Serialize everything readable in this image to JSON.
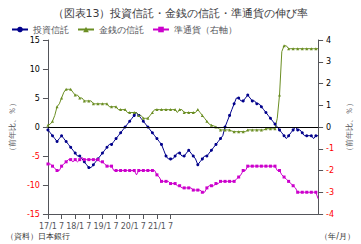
{
  "chart_data": {
    "type": "line",
    "title": "（図表13）投資信託・金銭の信託・準通貨の伸び率",
    "ylabel": "（前年比、％）",
    "y2label": "（前年比、％）",
    "annotations": [
      "（資料）日本銀行",
      "（年/月）"
    ],
    "legend": "upper left",
    "grid": false,
    "ylim": [
      -15,
      15
    ],
    "yticks": [
      -15,
      -10,
      -5,
      0,
      5,
      10,
      15
    ],
    "y2lim": [
      -4,
      4
    ],
    "y2ticks": [
      -4,
      -3,
      -2,
      -1,
      0,
      1,
      2,
      3,
      4
    ],
    "categories": [
      "17/1",
      null,
      null,
      null,
      null,
      null,
      "7",
      null,
      null,
      null,
      null,
      null,
      "18/1",
      null,
      null,
      null,
      null,
      null,
      "7",
      null,
      null,
      null,
      null,
      null,
      "19/1",
      null,
      null,
      null,
      null,
      null,
      "7",
      null,
      null,
      null,
      null,
      null,
      "20/1",
      null,
      null,
      null,
      null,
      null,
      "7",
      null,
      null,
      null,
      null,
      null,
      "21/1",
      null,
      null,
      null,
      null,
      null,
      "7",
      null,
      null,
      null,
      null,
      null,
      null,
      null,
      null,
      null,
      null,
      null,
      null,
      null,
      null,
      null,
      null,
      null,
      null,
      null,
      null,
      null,
      null,
      null,
      null,
      null,
      null,
      null,
      null,
      null,
      null,
      null,
      null,
      null,
      null,
      null,
      null,
      null,
      null,
      null,
      null,
      null,
      null,
      null,
      null,
      null,
      null,
      null,
      null,
      null,
      null,
      null,
      null,
      null,
      null,
      null,
      null,
      null,
      null,
      null,
      null,
      null,
      null,
      null,
      null,
      null
    ],
    "series": [
      {
        "name": "投資信託",
        "color": "#00008B",
        "marker": "circle",
        "values": [
          -0.5,
          -1.0,
          -1.5,
          -2.0,
          -2.5,
          -2.0,
          -1.5,
          -2.0,
          -2.5,
          -3.0,
          -3.5,
          -4.0,
          -4.5,
          -5.0,
          -5.0,
          -5.5,
          -6.0,
          -6.5,
          -7.0,
          -7.0,
          -6.5,
          -6.0,
          -5.5,
          -5.0,
          -4.5,
          -4.0,
          -3.5,
          -3.0,
          -3.0,
          -2.5,
          -2.0,
          -1.5,
          -1.0,
          -0.5,
          0.0,
          0.5,
          1.0,
          1.5,
          2.0,
          2.5,
          2.0,
          1.5,
          1.0,
          0.5,
          0.0,
          -0.5,
          -1.0,
          -1.5,
          -2.0,
          -2.5,
          -3.0,
          -4.0,
          -5.0,
          -5.5,
          -5.5,
          -5.5,
          -5.0,
          -4.5,
          -4.5,
          -5.0,
          -5.0,
          -4.5,
          -4.0,
          -4.5,
          -5.0,
          -5.5,
          -6.5,
          -6.0,
          -5.5,
          -5.0,
          -5.0,
          -4.5,
          -4.0,
          -3.5,
          -3.0,
          -2.5,
          -2.0,
          -1.5,
          0.0,
          1.0,
          2.0,
          3.0,
          4.0,
          5.0,
          5.0,
          4.5,
          4.5,
          5.0,
          5.5,
          5.0,
          4.5,
          4.5,
          4.0,
          4.0,
          3.5,
          3.0,
          2.5,
          2.0,
          1.5,
          1.0,
          0.5,
          0.0,
          -0.5,
          -1.0,
          -1.5,
          -2.0,
          -1.5,
          -1.0,
          -0.5,
          0.0,
          -0.5,
          -0.5,
          -1.0,
          -1.5,
          -1.5,
          -1.5,
          -1.5,
          -2.0,
          -1.5,
          -1.5
        ]
      },
      {
        "name": "金銭の信託",
        "color": "#6B8E23",
        "marker": "triangle",
        "values": [
          0.3,
          0.5,
          1.0,
          2.0,
          3.5,
          4.0,
          5.0,
          6.0,
          6.5,
          6.5,
          6.5,
          6.0,
          5.5,
          5.5,
          5.0,
          5.0,
          4.5,
          4.5,
          4.5,
          4.5,
          4.0,
          4.0,
          4.0,
          4.0,
          4.0,
          4.0,
          4.0,
          3.5,
          3.5,
          3.5,
          3.5,
          3.0,
          3.0,
          3.0,
          3.0,
          2.5,
          2.5,
          2.5,
          2.5,
          2.5,
          2.0,
          2.0,
          1.5,
          1.5,
          1.5,
          2.0,
          2.5,
          3.0,
          3.0,
          3.0,
          3.0,
          3.0,
          3.0,
          3.0,
          3.0,
          3.0,
          3.0,
          2.5,
          3.0,
          3.0,
          2.5,
          2.5,
          2.5,
          2.5,
          2.5,
          2.5,
          3.0,
          2.5,
          2.0,
          1.5,
          1.0,
          0.5,
          0.3,
          0.2,
          0.0,
          -0.2,
          -0.5,
          -0.5,
          -0.5,
          -0.5,
          -0.5,
          -0.7,
          -0.8,
          -0.8,
          -0.8,
          -0.8,
          -0.8,
          -0.8,
          -0.5,
          -0.5,
          -0.5,
          -0.5,
          -0.5,
          -0.5,
          -0.5,
          -0.5,
          -0.3,
          -0.3,
          -0.3,
          -0.3,
          -0.3,
          1.5,
          5.5,
          13.0,
          14.0,
          14.0,
          13.5,
          13.5,
          13.5,
          13.5,
          13.5,
          13.5,
          13.5,
          13.5,
          13.5,
          13.5,
          13.5,
          13.5,
          13.5,
          13.5
        ]
      },
      {
        "name": "準通貨（右軸）",
        "color": "#CC00CC",
        "marker": "square",
        "axis": "y2",
        "values": [
          -1.7,
          -1.7,
          -1.8,
          -1.9,
          -2.0,
          -2.0,
          -1.8,
          -1.7,
          -1.6,
          -1.5,
          -1.5,
          -1.6,
          -1.5,
          -1.6,
          -1.5,
          -1.4,
          -1.5,
          -1.5,
          -1.5,
          -1.5,
          -1.5,
          -1.5,
          -1.5,
          -1.6,
          -1.6,
          -1.7,
          -1.8,
          -1.8,
          -1.8,
          -2.0,
          -2.0,
          -2.0,
          -2.0,
          -2.0,
          -2.0,
          -2.0,
          -2.0,
          -2.0,
          -2.0,
          -2.2,
          -2.0,
          -2.0,
          -2.0,
          -2.0,
          -2.0,
          -2.0,
          -2.0,
          -2.0,
          -2.2,
          -2.3,
          -2.5,
          -2.5,
          -2.5,
          -2.5,
          -2.6,
          -2.6,
          -2.6,
          -2.7,
          -2.7,
          -2.8,
          -2.8,
          -2.8,
          -2.8,
          -2.8,
          -2.9,
          -2.9,
          -2.9,
          -2.9,
          -3.0,
          -3.0,
          -2.8,
          -2.7,
          -2.7,
          -2.7,
          -2.6,
          -2.6,
          -2.5,
          -2.5,
          -2.5,
          -2.5,
          -2.5,
          -2.5,
          -2.5,
          -2.4,
          -2.3,
          -2.2,
          -2.0,
          -2.0,
          -1.8,
          -1.8,
          -1.8,
          -1.8,
          -1.8,
          -1.8,
          -1.8,
          -1.8,
          -1.8,
          -1.8,
          -1.8,
          -1.8,
          -1.8,
          -2.0,
          -2.0,
          -2.2,
          -2.3,
          -2.4,
          -2.5,
          -2.6,
          -2.7,
          -2.8,
          -3.0,
          -3.0,
          -3.0,
          -3.0,
          -3.0,
          -3.0,
          -3.0,
          -3.0,
          -3.0,
          -3.3
        ]
      }
    ]
  }
}
